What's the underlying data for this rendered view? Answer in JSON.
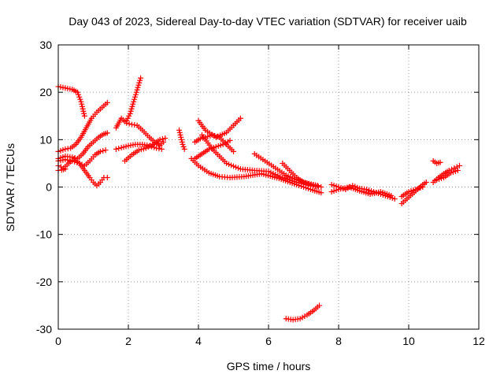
{
  "chart_data": {
    "type": "scatter",
    "title": "Day 043 of 2023, Sidereal Day-to-day VTEC variation (SDTVAR) for receiver uaib",
    "xlabel": "GPS time / hours",
    "ylabel": "SDTVAR / TECUs",
    "xlim": [
      0,
      12
    ],
    "ylim": [
      -30,
      30
    ],
    "xticks": [
      0,
      2,
      4,
      6,
      8,
      10,
      12
    ],
    "yticks": [
      -30,
      -20,
      -10,
      0,
      10,
      20,
      30
    ],
    "grid": true,
    "marker": "+",
    "color": "#ff0000",
    "series": [
      {
        "name": "s1",
        "x": [
          0.0,
          0.2,
          0.4,
          0.55,
          0.65,
          0.75
        ],
        "y": [
          21.2,
          20.9,
          20.6,
          20.0,
          18.0,
          15.0
        ]
      },
      {
        "name": "s2",
        "x": [
          0.0,
          0.2,
          0.35,
          0.5,
          0.65,
          0.8,
          0.95,
          1.1,
          1.25,
          1.4
        ],
        "y": [
          7.5,
          8.0,
          8.2,
          9.0,
          10.5,
          12.5,
          14.5,
          15.8,
          16.8,
          17.8
        ]
      },
      {
        "name": "s3",
        "x": [
          0.0,
          0.2,
          0.4,
          0.55,
          0.7,
          0.85,
          1.0,
          1.15,
          1.3,
          1.4
        ],
        "y": [
          6.0,
          6.5,
          6.3,
          6.0,
          7.0,
          8.5,
          9.5,
          10.5,
          11.2,
          11.4
        ]
      },
      {
        "name": "s4",
        "x": [
          0.0,
          0.2,
          0.4,
          0.6,
          0.75,
          0.9,
          1.05,
          1.2,
          1.35
        ],
        "y": [
          5.5,
          5.8,
          5.5,
          5.0,
          4.5,
          5.5,
          6.8,
          7.5,
          7.8
        ]
      },
      {
        "name": "s5",
        "x": [
          0.0,
          0.15,
          0.3,
          0.45,
          0.6,
          0.75,
          0.9,
          1.0,
          1.1,
          1.2,
          1.3,
          1.4
        ],
        "y": [
          4.5,
          4.0,
          5.0,
          6.0,
          5.0,
          3.5,
          2.0,
          1.0,
          0.3,
          1.0,
          2.0,
          2.0
        ]
      },
      {
        "name": "s6",
        "x": [
          0.0,
          0.1,
          0.2
        ],
        "y": [
          3.5,
          3.6,
          3.8
        ]
      },
      {
        "name": "s7",
        "x": [
          1.95,
          2.05,
          2.15,
          2.25,
          2.35
        ],
        "y": [
          14.0,
          15.5,
          18.0,
          20.5,
          23.0
        ]
      },
      {
        "name": "s8",
        "x": [
          1.65,
          1.8,
          1.95,
          2.1,
          2.25,
          2.4,
          2.6,
          2.75,
          2.9,
          3.0
        ],
        "y": [
          12.5,
          14.5,
          13.5,
          13.2,
          13.0,
          12.0,
          10.5,
          9.5,
          8.8,
          9.5
        ]
      },
      {
        "name": "s9",
        "x": [
          1.65,
          1.8,
          2.0,
          2.2,
          2.4,
          2.6,
          2.8,
          2.95
        ],
        "y": [
          8.0,
          8.3,
          8.7,
          9.0,
          9.0,
          8.7,
          8.2,
          8.0
        ]
      },
      {
        "name": "s10",
        "x": [
          1.9,
          2.1,
          2.3,
          2.5,
          2.7,
          2.9,
          3.05
        ],
        "y": [
          5.5,
          6.8,
          7.8,
          8.2,
          9.0,
          10.0,
          10.3
        ]
      },
      {
        "name": "s11",
        "x": [
          3.45,
          3.5,
          3.55,
          3.6
        ],
        "y": [
          12.0,
          10.5,
          9.0,
          8.0
        ]
      },
      {
        "name": "s12",
        "x": [
          3.9,
          4.05,
          4.2,
          4.4,
          4.6,
          4.8,
          5.0
        ],
        "y": [
          9.5,
          10.2,
          10.5,
          11.0,
          10.5,
          9.0,
          7.5
        ]
      },
      {
        "name": "s13",
        "x": [
          4.0,
          4.2,
          4.5,
          4.8,
          5.0,
          5.2
        ],
        "y": [
          14.0,
          12.0,
          10.5,
          11.5,
          13.0,
          14.5
        ]
      },
      {
        "name": "s14",
        "x": [
          3.9,
          4.1,
          4.3,
          4.5,
          4.7,
          4.9
        ],
        "y": [
          6.0,
          7.0,
          8.0,
          8.5,
          9.0,
          9.8
        ]
      },
      {
        "name": "s15",
        "x": [
          3.8,
          4.0,
          4.3,
          4.6,
          4.9,
          5.3,
          5.8,
          6.3,
          6.8,
          7.2,
          7.5
        ],
        "y": [
          6.0,
          4.5,
          3.0,
          2.2,
          2.0,
          2.2,
          2.8,
          1.8,
          0.5,
          -0.5,
          -1.2
        ]
      },
      {
        "name": "s16",
        "x": [
          4.1,
          4.4,
          4.8,
          5.2,
          5.6,
          6.0,
          6.4,
          6.8,
          7.2,
          7.5
        ],
        "y": [
          11.0,
          8.0,
          5.0,
          3.8,
          3.5,
          3.3,
          2.0,
          1.0,
          0.3,
          0.0
        ]
      },
      {
        "name": "s17",
        "x": [
          5.6,
          5.9,
          6.2,
          6.5,
          6.8,
          7.1,
          7.4
        ],
        "y": [
          7.0,
          5.5,
          4.0,
          2.5,
          1.5,
          0.8,
          0.3
        ]
      },
      {
        "name": "s18",
        "x": [
          6.4,
          6.6,
          6.8,
          7.0,
          7.2,
          7.4
        ],
        "y": [
          5.0,
          3.5,
          2.0,
          1.0,
          0.5,
          0.3
        ]
      },
      {
        "name": "s19",
        "x": [
          6.5,
          6.7,
          6.9,
          7.1,
          7.3,
          7.45
        ],
        "y": [
          -27.8,
          -28.0,
          -27.8,
          -27.0,
          -26.0,
          -25.0
        ]
      },
      {
        "name": "s20",
        "x": [
          7.8,
          8.0,
          8.2,
          8.4,
          8.6,
          8.8,
          9.0,
          9.2,
          9.4,
          9.6
        ],
        "y": [
          0.5,
          0.0,
          -0.5,
          0.3,
          -0.3,
          -0.5,
          -1.0,
          -1.5,
          -2.0,
          -2.5
        ]
      },
      {
        "name": "s21",
        "x": [
          7.8,
          8.0,
          8.3,
          8.6,
          8.9,
          9.2,
          9.5
        ],
        "y": [
          -1.0,
          -0.5,
          0.0,
          -0.8,
          -1.5,
          -1.0,
          -1.8
        ]
      },
      {
        "name": "s22",
        "x": [
          9.8,
          9.95,
          10.1,
          10.25,
          10.4,
          10.5
        ],
        "y": [
          -3.5,
          -2.5,
          -1.5,
          -0.5,
          0.5,
          1.0
        ]
      },
      {
        "name": "s23",
        "x": [
          9.8,
          10.0,
          10.2,
          10.4
        ],
        "y": [
          -2.0,
          -1.0,
          -0.5,
          0.0
        ]
      },
      {
        "name": "s24",
        "x": [
          10.7,
          10.8,
          10.9
        ],
        "y": [
          5.5,
          5.0,
          5.2
        ]
      },
      {
        "name": "s25",
        "x": [
          10.7,
          10.85,
          11.0,
          11.15,
          11.3,
          11.45
        ],
        "y": [
          1.0,
          2.0,
          2.8,
          3.5,
          4.0,
          4.5
        ]
      },
      {
        "name": "s26",
        "x": [
          10.8,
          11.0,
          11.2,
          11.4
        ],
        "y": [
          1.5,
          2.0,
          3.0,
          3.5
        ]
      }
    ]
  }
}
